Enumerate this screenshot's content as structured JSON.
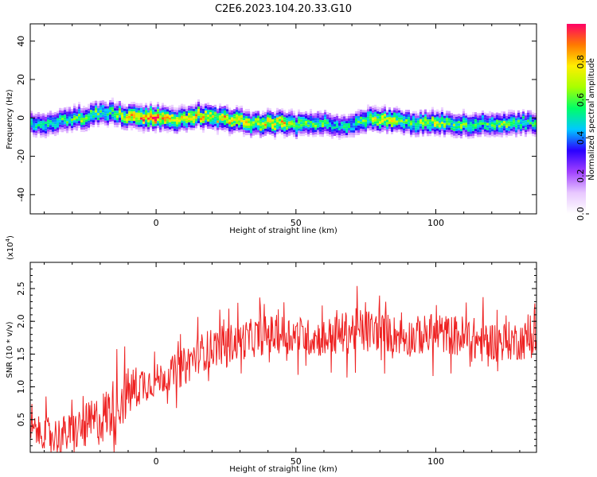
{
  "title": "C2E6.2023.104.20.33.G10",
  "chart_data": [
    {
      "type": "heatmap",
      "xlabel": "Height of straight line (km)",
      "ylabel": "Frequency (Hz)",
      "xlim": [
        -45,
        136
      ],
      "ylim": [
        -50,
        49
      ],
      "xticks": [
        0,
        50,
        100
      ],
      "yticks": [
        -40,
        -20,
        0,
        20,
        40
      ],
      "colorbar": {
        "label": "Normalized spectral amplitude",
        "range": [
          0.0,
          1.0
        ],
        "ticks": [
          0.0,
          0.2,
          0.4,
          0.6,
          0.8
        ],
        "tick_labels": [
          "0.0",
          "0.2",
          "0.4",
          "0.6",
          "0.8"
        ],
        "colormap": [
          "#ffffff",
          "#e8c8ff",
          "#a040ff",
          "#2a00ff",
          "#00c8ff",
          "#00ff66",
          "#a8ff00",
          "#ffee00",
          "#ff7a00",
          "#ff0066"
        ]
      },
      "ridge": {
        "x": [
          -45,
          -40,
          -35,
          -30,
          -25,
          -20,
          -15,
          -10,
          -5,
          0,
          5,
          10,
          15,
          20,
          25,
          30,
          35,
          40,
          45,
          50,
          55,
          60,
          65,
          70,
          75,
          80,
          85,
          90,
          95,
          100,
          105,
          110,
          115,
          120,
          125,
          130,
          136
        ],
        "y": [
          -2,
          -3,
          -1,
          0,
          1,
          3,
          3,
          1,
          1,
          1,
          0,
          0,
          2,
          1,
          0,
          -1,
          -3,
          -2,
          -2,
          -3,
          -2,
          -2,
          -4,
          -3,
          -1,
          0,
          -1,
          -2,
          -2,
          -2,
          -2,
          -3,
          -3,
          -2,
          -2,
          -2,
          -2
        ],
        "amplitude": [
          0.45,
          0.5,
          0.5,
          0.55,
          0.6,
          0.55,
          0.55,
          0.7,
          0.85,
          0.9,
          0.7,
          0.7,
          0.75,
          0.7,
          0.75,
          0.7,
          0.65,
          0.75,
          0.75,
          0.6,
          0.55,
          0.55,
          0.45,
          0.5,
          0.6,
          0.7,
          0.65,
          0.55,
          0.6,
          0.65,
          0.55,
          0.6,
          0.55,
          0.55,
          0.6,
          0.55,
          0.5
        ]
      }
    },
    {
      "type": "line",
      "xlabel": "Height of straight line (km)",
      "ylabel": "SNR (10 * v/v)",
      "y_multiplier": "(x10",
      "y_multiplier_exp": "4",
      "y_multiplier_close": ")",
      "xlim": [
        -45,
        136
      ],
      "ylim": [
        0,
        2.9
      ],
      "xticks": [
        0,
        50,
        100
      ],
      "yticks": [
        0.5,
        1.0,
        1.5,
        2.0,
        2.5
      ],
      "ytick_labels": [
        "0.5",
        "1.0",
        "1.5",
        "2.0",
        "2.5"
      ],
      "line_color": "#ee2222",
      "series": [
        {
          "x": [
            -45,
            -40,
            -35,
            -30,
            -25,
            -20,
            -15,
            -10,
            -5,
            0,
            5,
            10,
            15,
            20,
            25,
            30,
            35,
            40,
            45,
            50,
            55,
            60,
            65,
            70,
            75,
            80,
            85,
            90,
            95,
            100,
            105,
            110,
            115,
            120,
            125,
            130,
            136
          ],
          "values": [
            0.35,
            0.3,
            0.25,
            0.3,
            0.4,
            0.5,
            0.7,
            0.9,
            1.05,
            1.1,
            1.2,
            1.3,
            1.5,
            1.6,
            1.65,
            1.7,
            1.75,
            1.8,
            1.8,
            1.8,
            1.75,
            1.75,
            1.8,
            1.85,
            1.85,
            1.85,
            1.8,
            1.75,
            1.8,
            1.8,
            1.8,
            1.75,
            1.7,
            1.7,
            1.7,
            1.7,
            1.75
          ],
          "noise": [
            0.2,
            0.25,
            0.3,
            0.3,
            0.35,
            0.4,
            0.45,
            0.4,
            0.3,
            0.25,
            0.25,
            0.3,
            0.3,
            0.3,
            0.3,
            0.3,
            0.3,
            0.3,
            0.3,
            0.3,
            0.28,
            0.3,
            0.3,
            0.35,
            0.35,
            0.3,
            0.3,
            0.3,
            0.3,
            0.3,
            0.3,
            0.35,
            0.35,
            0.3,
            0.3,
            0.3,
            0.3
          ]
        }
      ]
    }
  ]
}
